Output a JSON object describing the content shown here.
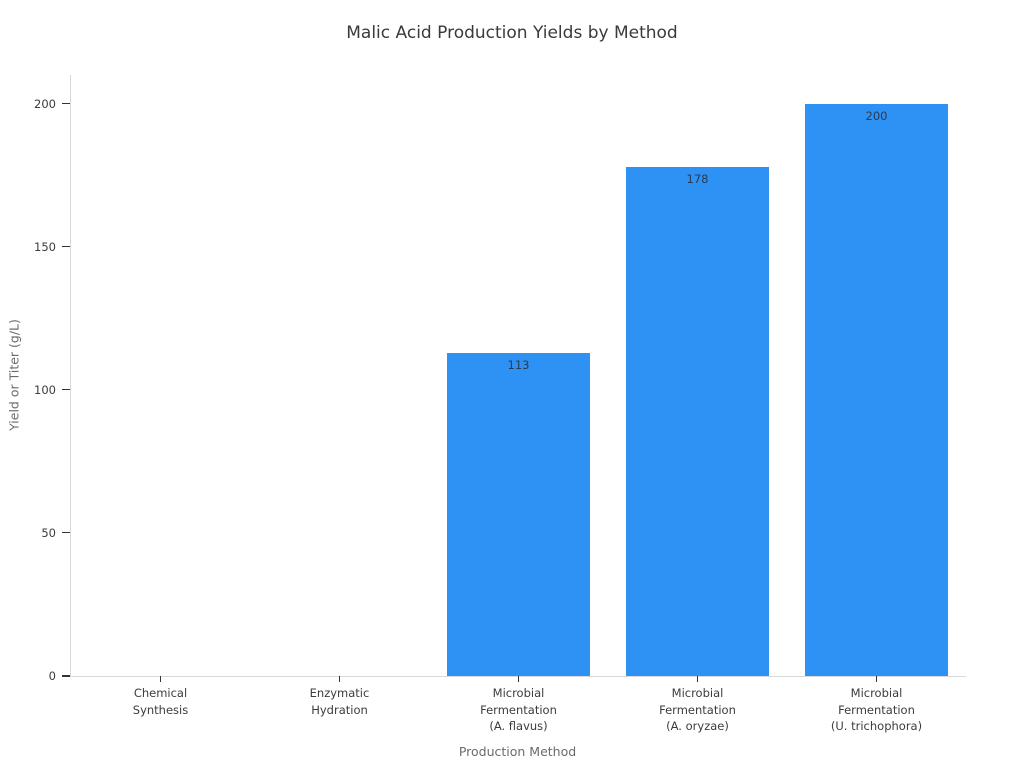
{
  "chart_data": {
    "type": "bar",
    "title": "Malic Acid Production Yields by Method",
    "xlabel": "Production Method",
    "ylabel": "Yield or Titer (g/L)",
    "categories": [
      "Chemical\nSynthesis",
      "Enzymatic\nHydration",
      "Microbial\nFermentation\n(A. flavus)",
      "Microbial\nFermentation\n(A. oryzae)",
      "Microbial\nFermentation\n(U. trichophora)"
    ],
    "values": [
      0,
      0,
      113,
      178,
      200
    ],
    "bar_value_labels": [
      "",
      "",
      "113",
      "178",
      "200"
    ],
    "yticks": [
      0,
      50,
      100,
      150,
      200
    ],
    "ylim": [
      0,
      210
    ],
    "bar_width_fraction": 0.8,
    "grid": false,
    "legend": false,
    "colors": {
      "bar": "#2e91f4",
      "bar_value_label": "#2e3b4e",
      "axis_line": "#d9d9d9",
      "tick_mark": "#333333",
      "tick_label": "#3c3c3c",
      "axis_title": "#6b6b6b",
      "title": "#3a3a3a",
      "background": "#ffffff"
    }
  }
}
